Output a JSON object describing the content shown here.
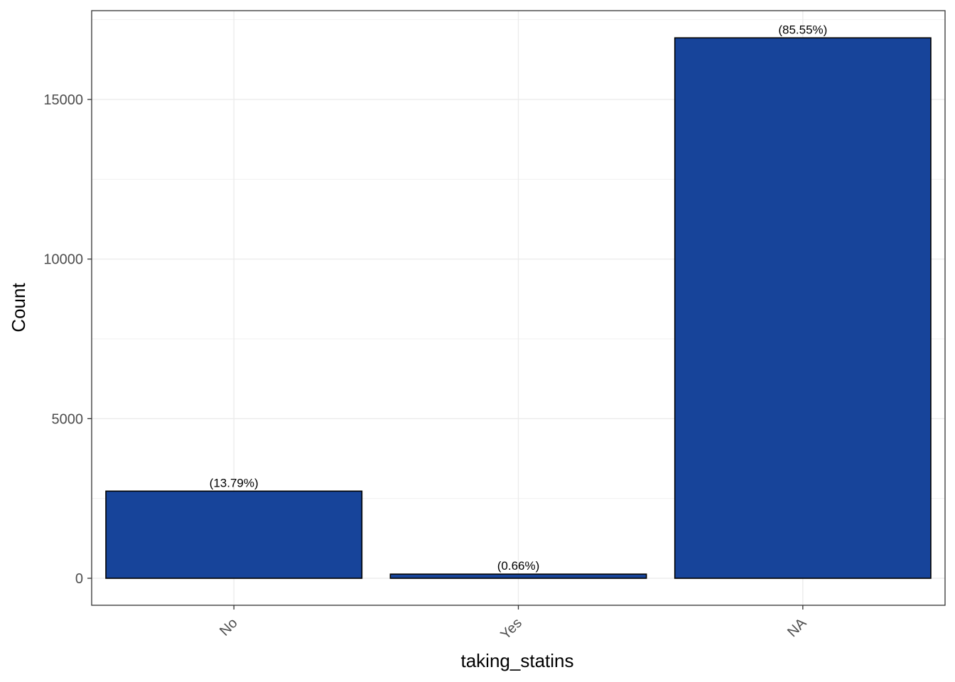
{
  "chart_data": {
    "type": "bar",
    "title": "",
    "xlabel": "taking_statins",
    "ylabel": "Count",
    "categories": [
      "No",
      "Yes",
      "NA"
    ],
    "values": [
      2730,
      130,
      16930
    ],
    "data_labels": [
      "(13.79%)",
      "(0.66%)",
      "(85.55%)"
    ],
    "ylim": [
      -1700,
      17600
    ],
    "yticks": [
      0,
      5000,
      10000,
      15000
    ],
    "ytick_labels": [
      "0",
      "5000",
      "10000",
      "15000"
    ],
    "grid": true,
    "legend": "none",
    "bar_color": "#17449A",
    "bar_outline": "#000000",
    "x_tick_rotation_deg": 45
  }
}
